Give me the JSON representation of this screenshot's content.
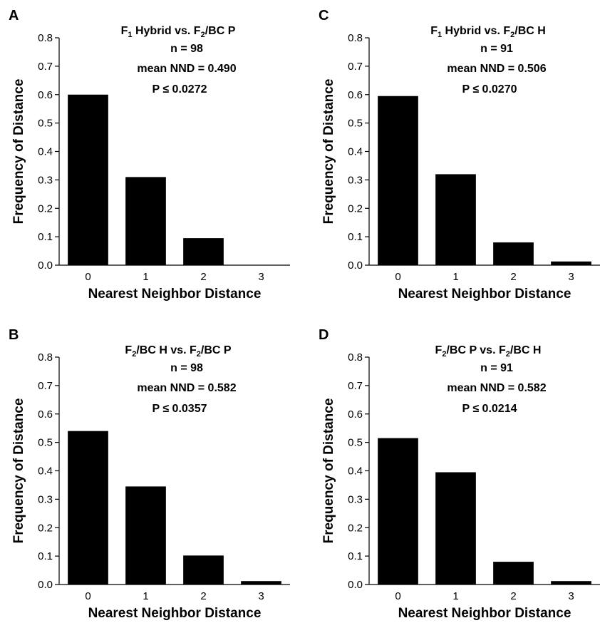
{
  "chart_data": [
    {
      "panel": "A",
      "type": "bar",
      "title_parts": [
        "F",
        "1",
        " Hybrid vs. F",
        "2",
        "/BC P"
      ],
      "annotations": [
        "n = 98",
        "mean NND = 0.490",
        "P ≤ 0.0272"
      ],
      "categories": [
        "0",
        "1",
        "2",
        "3"
      ],
      "values": [
        0.6,
        0.31,
        0.095,
        0.0
      ],
      "xlabel": "Nearest Neighbor Distance",
      "ylabel": "Frequency of Distance",
      "ylim": [
        0,
        0.8
      ],
      "yticks": [
        "0.0",
        "0.1",
        "0.2",
        "0.3",
        "0.4",
        "0.5",
        "0.6",
        "0.7",
        "0.8"
      ]
    },
    {
      "panel": "C",
      "type": "bar",
      "title_parts": [
        "F",
        "1",
        " Hybrid vs. F",
        "2",
        "/BC H"
      ],
      "annotations": [
        "n = 91",
        "mean NND = 0.506",
        "P ≤ 0.0270"
      ],
      "categories": [
        "0",
        "1",
        "2",
        "3"
      ],
      "values": [
        0.595,
        0.32,
        0.08,
        0.013
      ],
      "xlabel": "Nearest Neighbor Distance",
      "ylabel": "Frequency of Distance",
      "ylim": [
        0,
        0.8
      ],
      "yticks": [
        "0.0",
        "0.1",
        "0.2",
        "0.3",
        "0.4",
        "0.5",
        "0.6",
        "0.7",
        "0.8"
      ]
    },
    {
      "panel": "B",
      "type": "bar",
      "title_parts": [
        "F",
        "2",
        "/BC H vs. F",
        "2",
        "/BC P"
      ],
      "annotations": [
        "n = 98",
        "mean NND = 0.582",
        "P ≤ 0.0357"
      ],
      "categories": [
        "0",
        "1",
        "2",
        "3"
      ],
      "values": [
        0.54,
        0.345,
        0.102,
        0.012
      ],
      "xlabel": "Nearest Neighbor Distance",
      "ylabel": "Frequency of Distance",
      "ylim": [
        0,
        0.8
      ],
      "yticks": [
        "0.0",
        "0.1",
        "0.2",
        "0.3",
        "0.4",
        "0.5",
        "0.6",
        "0.7",
        "0.8"
      ]
    },
    {
      "panel": "D",
      "type": "bar",
      "title_parts": [
        "F",
        "2",
        "/BC P vs. F",
        "2",
        "/BC H"
      ],
      "annotations": [
        "n = 91",
        "mean NND = 0.582",
        "P ≤ 0.0214"
      ],
      "categories": [
        "0",
        "1",
        "2",
        "3"
      ],
      "values": [
        0.515,
        0.395,
        0.08,
        0.012
      ],
      "xlabel": "Nearest Neighbor Distance",
      "ylabel": "Frequency of Distance",
      "ylim": [
        0,
        0.8
      ],
      "yticks": [
        "0.0",
        "0.1",
        "0.2",
        "0.3",
        "0.4",
        "0.5",
        "0.6",
        "0.7",
        "0.8"
      ]
    }
  ]
}
